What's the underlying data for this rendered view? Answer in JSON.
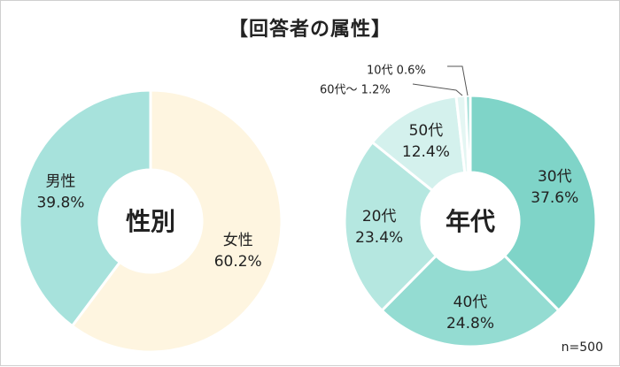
{
  "title": "【回答者の属性】",
  "note": "n=500",
  "chart_data": [
    {
      "type": "pie",
      "center_label": "性別",
      "slices": [
        {
          "category": "女性",
          "value": 60.2,
          "value_label": "60.2%",
          "color": "#fef5e0"
        },
        {
          "category": "男性",
          "value": 39.8,
          "value_label": "39.8%",
          "color": "#a7e2dc"
        }
      ]
    },
    {
      "type": "pie",
      "center_label": "年代",
      "slices": [
        {
          "category": "30代",
          "value": 37.6,
          "value_label": "37.6%",
          "color": "#7fd4c8"
        },
        {
          "category": "40代",
          "value": 24.8,
          "value_label": "24.8%",
          "color": "#94dcd2"
        },
        {
          "category": "20代",
          "value": 23.4,
          "value_label": "23.4%",
          "color": "#b5e7e0"
        },
        {
          "category": "50代",
          "value": 12.4,
          "value_label": "12.4%",
          "color": "#d4f1ed"
        },
        {
          "category": "60代～",
          "value": 1.2,
          "value_label": "1.2%",
          "color": "#e4f6f3"
        },
        {
          "category": "10代",
          "value": 0.6,
          "value_label": "0.6%",
          "color": "#9fded6"
        }
      ]
    }
  ]
}
